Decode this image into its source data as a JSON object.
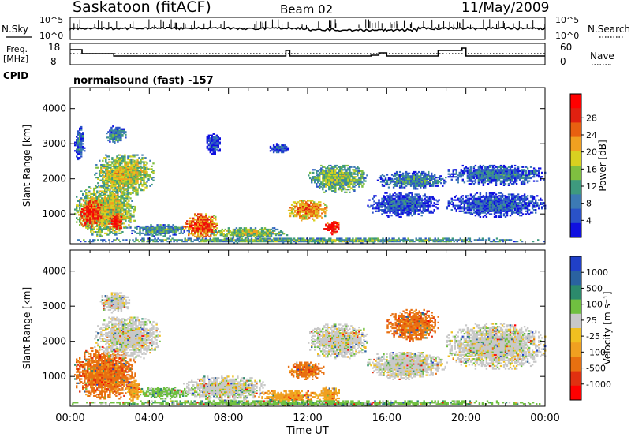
{
  "header": {
    "station": "Saskatoon (fitACF)",
    "beam": "Beam 02",
    "date": "11/May/2009"
  },
  "panels": {
    "nsky": {
      "label": "N.Sky",
      "right_label": "N.Search",
      "ticks_left": [
        "10^5",
        "10^0"
      ],
      "ticks_right": [
        "10^5",
        "10^0"
      ]
    },
    "freq": {
      "label_line1": "Freq.",
      "label_line2": "[MHz]",
      "right_label": "Nave",
      "ticks_left": [
        "18",
        "8"
      ],
      "ticks_right": [
        "60",
        "0"
      ]
    },
    "cpid": {
      "label": "CPID",
      "text": "normalsound (fast) -157"
    }
  },
  "chart_data": [
    {
      "type": "heatmap",
      "name": "power",
      "ylabel": "Slant Range [km]",
      "xlabel": "Time UT",
      "ylim": [
        150,
        4600
      ],
      "xlim_hours": [
        0,
        24
      ],
      "yticks": [
        1000,
        2000,
        3000,
        4000
      ],
      "colorbar": {
        "label": "Power [dB]",
        "ticks": [
          "4",
          "8",
          "12",
          "16",
          "20",
          "24",
          "28"
        ],
        "colors": [
          "#1010e0",
          "#2a52c8",
          "#3c7ab4",
          "#3e9a7e",
          "#7fbf40",
          "#d8d020",
          "#f0a020",
          "#e86010",
          "#e02010",
          "#ff0000"
        ]
      },
      "regions": [
        {
          "t0": 0.2,
          "t1": 3.3,
          "r0": 350,
          "r1": 1800,
          "level": 0.55
        },
        {
          "t0": 0.4,
          "t1": 1.6,
          "r0": 600,
          "r1": 1400,
          "level": 0.85
        },
        {
          "t0": 1.9,
          "t1": 2.6,
          "r0": 500,
          "r1": 1000,
          "level": 0.9
        },
        {
          "t0": 1.2,
          "t1": 4.2,
          "r0": 1500,
          "r1": 2700,
          "level": 0.55
        },
        {
          "t0": 1.8,
          "t1": 2.8,
          "r0": 3000,
          "r1": 3500,
          "level": 0.3
        },
        {
          "t0": 0.2,
          "t1": 0.7,
          "r0": 2500,
          "r1": 3500,
          "level": 0.25
        },
        {
          "t0": 3.0,
          "t1": 6.0,
          "r0": 350,
          "r1": 700,
          "level": 0.35
        },
        {
          "t0": 5.7,
          "t1": 7.5,
          "r0": 300,
          "r1": 1000,
          "level": 0.8
        },
        {
          "t0": 7.0,
          "t1": 11.0,
          "r0": 300,
          "r1": 600,
          "level": 0.5
        },
        {
          "t0": 11.0,
          "t1": 13.0,
          "r0": 800,
          "r1": 1400,
          "level": 0.7
        },
        {
          "t0": 12.8,
          "t1": 13.6,
          "r0": 400,
          "r1": 800,
          "level": 0.95
        },
        {
          "t0": 12.0,
          "t1": 15.0,
          "r0": 1600,
          "r1": 2400,
          "level": 0.45
        },
        {
          "t0": 15.0,
          "t1": 18.6,
          "r0": 900,
          "r1": 1600,
          "level": 0.2
        },
        {
          "t0": 15.5,
          "t1": 19.0,
          "r0": 1700,
          "r1": 2200,
          "level": 0.3
        },
        {
          "t0": 19.0,
          "t1": 24.0,
          "r0": 900,
          "r1": 1600,
          "level": 0.2
        },
        {
          "t0": 19.0,
          "t1": 24.0,
          "r0": 1800,
          "r1": 2400,
          "level": 0.25
        },
        {
          "t0": 6.8,
          "t1": 7.6,
          "r0": 2700,
          "r1": 3300,
          "level": 0.15
        },
        {
          "t0": 10.0,
          "t1": 11.0,
          "r0": 2700,
          "r1": 3000,
          "level": 0.2
        },
        {
          "t0": 0.0,
          "t1": 24.0,
          "r0": 160,
          "r1": 300,
          "level": 0.4
        }
      ]
    },
    {
      "type": "heatmap",
      "name": "velocity",
      "ylabel": "Slant Range [km]",
      "xlabel": "Time UT",
      "ylim": [
        150,
        4600
      ],
      "xlim_hours": [
        0,
        24
      ],
      "yticks": [
        1000,
        2000,
        3000,
        4000
      ],
      "xticks": [
        "00:00",
        "04:00",
        "08:00",
        "12:00",
        "16:00",
        "20:00",
        "00:00"
      ],
      "colorbar": {
        "label": "Velocity [m s⁻¹]",
        "ticks": [
          "1000",
          "500",
          "100",
          "25",
          "-25",
          "-100",
          "-500",
          "-1000"
        ],
        "colors": [
          "#2040c8",
          "#2a62a0",
          "#2c8a6c",
          "#70c040",
          "#c8c8c8",
          "#f0c020",
          "#f0a020",
          "#e87010",
          "#e03010",
          "#ff0000"
        ]
      },
      "regions": [
        {
          "t0": 0.2,
          "t1": 3.3,
          "r0": 350,
          "r1": 1800,
          "vel": "-500"
        },
        {
          "t0": 2.8,
          "t1": 3.6,
          "r0": 300,
          "r1": 900,
          "vel": "-100"
        },
        {
          "t0": 1.2,
          "t1": 4.5,
          "r0": 1500,
          "r1": 2700,
          "vel": "0"
        },
        {
          "t0": 1.5,
          "t1": 3.0,
          "r0": 2800,
          "r1": 3400,
          "vel": "0"
        },
        {
          "t0": 3.5,
          "t1": 6.0,
          "r0": 350,
          "r1": 700,
          "vel": "100"
        },
        {
          "t0": 5.7,
          "t1": 9.8,
          "r0": 300,
          "r1": 1000,
          "vel": "0"
        },
        {
          "t0": 9.5,
          "t1": 12.5,
          "r0": 200,
          "r1": 600,
          "vel": "-100"
        },
        {
          "t0": 11.0,
          "t1": 12.8,
          "r0": 900,
          "r1": 1400,
          "vel": "-500"
        },
        {
          "t0": 12.5,
          "t1": 13.6,
          "r0": 200,
          "r1": 700,
          "vel": "-100"
        },
        {
          "t0": 12.0,
          "t1": 15.0,
          "r0": 1500,
          "r1": 2500,
          "vel": "0"
        },
        {
          "t0": 15.0,
          "t1": 19.0,
          "r0": 900,
          "r1": 1700,
          "vel": "0"
        },
        {
          "t0": 16.0,
          "t1": 18.6,
          "r0": 2000,
          "r1": 2900,
          "vel": "-500"
        },
        {
          "t0": 19.0,
          "t1": 24.0,
          "r0": 1200,
          "r1": 2500,
          "vel": "0"
        },
        {
          "t0": 0.0,
          "t1": 24.0,
          "r0": 160,
          "r1": 300,
          "vel": "100"
        }
      ]
    }
  ]
}
